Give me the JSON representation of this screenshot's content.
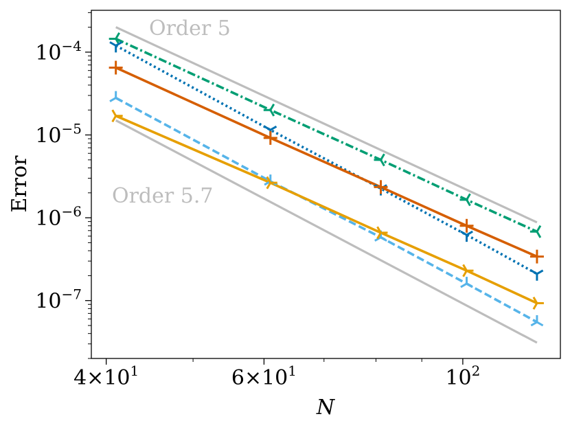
{
  "chart_data": {
    "type": "line",
    "title": "",
    "xlabel": "N",
    "ylabel": "Error",
    "xscale": "log",
    "yscale": "log",
    "xlim": [
      38.5,
      128.5
    ],
    "ylim": [
      2e-08,
      0.00032
    ],
    "grid": false,
    "legend": "none",
    "x_ticks": [
      {
        "value": 40,
        "mantissa": "4",
        "exp": "1"
      },
      {
        "value": 60,
        "mantissa": "6",
        "exp": "1"
      },
      {
        "value": 100,
        "mantissa": "",
        "exp": "2"
      }
    ],
    "y_ticks": [
      {
        "value": 0.0001,
        "exp": "−4"
      },
      {
        "value": 1e-05,
        "exp": "−5"
      },
      {
        "value": 1e-06,
        "exp": "−6"
      },
      {
        "value": 1e-07,
        "exp": "−7"
      }
    ],
    "x": [
      41,
      61,
      81,
      101,
      121
    ],
    "series": [
      {
        "color": "#009e73",
        "dash": "dashdot",
        "marker": "tri-left",
        "values": [
          0.000145,
          2e-05,
          5e-06,
          1.65e-06,
          6.8e-07
        ]
      },
      {
        "color": "#0072b2",
        "dash": "dotted",
        "marker": "tri-down",
        "values": [
          0.00012,
          1.15e-05,
          2.25e-06,
          6.2e-07,
          2.1e-07
        ]
      },
      {
        "color": "#d55e00",
        "dash": "solid",
        "marker": "plus",
        "values": [
          6.5e-05,
          9.2e-06,
          2.35e-06,
          8e-07,
          3.4e-07
        ]
      },
      {
        "color": "#56b4e9",
        "dash": "dashed",
        "marker": "tri-up",
        "values": [
          2.8e-05,
          2.75e-06,
          5.8e-07,
          1.6e-07,
          5.5e-08
        ]
      },
      {
        "color": "#e69f00",
        "dash": "solid",
        "marker": "tri-right",
        "values": [
          1.7e-05,
          2.65e-06,
          6.6e-07,
          2.3e-07,
          9.3e-08
        ]
      }
    ],
    "reference_lines": [
      {
        "label": "Order 5",
        "color": "#bdbdbd",
        "x": [
          41,
          121
        ],
        "values": [
          0.0002,
          8.8e-07
        ]
      },
      {
        "label": "Order 5.7",
        "color": "#bdbdbd",
        "x": [
          41,
          121
        ],
        "values": [
          1.5e-05,
          3.1e-08
        ]
      }
    ]
  }
}
